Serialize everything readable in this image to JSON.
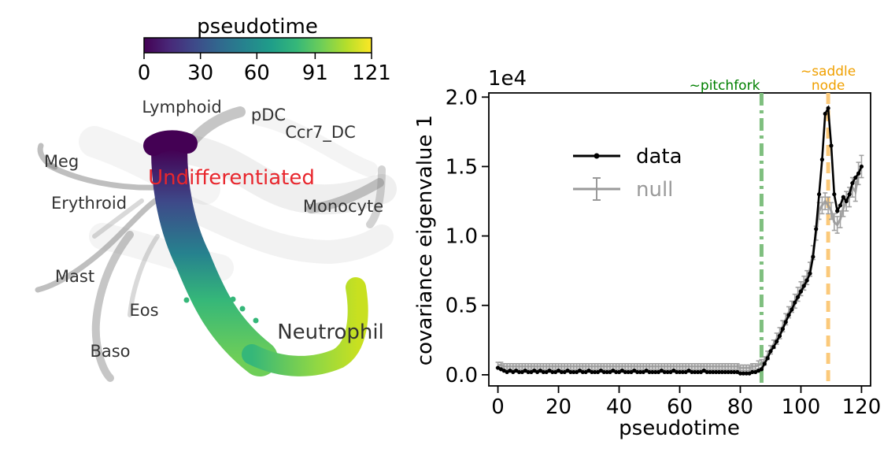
{
  "chart_data": [
    {
      "type": "scatter",
      "colorbar": {
        "label": "pseudotime",
        "ticks": [
          "0",
          "30",
          "60",
          "91",
          "121"
        ],
        "range": [
          0,
          121
        ],
        "colormap": [
          "#440154",
          "#482878",
          "#3e4989",
          "#31688e",
          "#26828e",
          "#1f9e89",
          "#35b779",
          "#6ece58",
          "#b5de2b",
          "#fde725"
        ]
      },
      "background_color": "#808080",
      "highlight_color": "#e8262d",
      "labels": [
        {
          "text": "Lymphoid",
          "emphasis": "normal"
        },
        {
          "text": "pDC",
          "emphasis": "normal"
        },
        {
          "text": "Ccr7_DC",
          "emphasis": "normal"
        },
        {
          "text": "Meg",
          "emphasis": "normal"
        },
        {
          "text": "Undifferentiated",
          "emphasis": "highlight"
        },
        {
          "text": "Erythroid",
          "emphasis": "normal"
        },
        {
          "text": "Monocyte",
          "emphasis": "normal"
        },
        {
          "text": "Mast",
          "emphasis": "normal"
        },
        {
          "text": "Eos",
          "emphasis": "normal"
        },
        {
          "text": "Neutrophil",
          "emphasis": "large"
        },
        {
          "text": "Baso",
          "emphasis": "normal"
        }
      ]
    },
    {
      "type": "line",
      "xlabel": "pseudotime",
      "ylabel": "covariance eigenvalue 1",
      "offset_text": "1e4",
      "xlim": [
        -3,
        123
      ],
      "ylim": [
        -0.08,
        2.03
      ],
      "xticks": [
        0,
        20,
        40,
        60,
        80,
        100,
        120
      ],
      "xtick_labels": [
        "0",
        "20",
        "40",
        "60",
        "80",
        "100",
        "120"
      ],
      "yticks": [
        0.0,
        0.5,
        1.0,
        1.5,
        2.0
      ],
      "ytick_labels": [
        "0.0",
        "0.5",
        "1.0",
        "1.5",
        "2.0"
      ],
      "legend": {
        "position": "upper-left",
        "entries": [
          "data",
          "null"
        ]
      },
      "annotations": [
        {
          "text": "~pitchfork",
          "x": 87,
          "color": "#008000",
          "line_color": "#7fbf7f",
          "style": "dashdot"
        },
        {
          "text": "~saddle",
          "text2": "node",
          "x": 109,
          "color": "#f0a000",
          "line_color": "#fbc97a",
          "style": "dashed"
        }
      ],
      "series": [
        {
          "name": "data",
          "color": "#000000",
          "x": [
            0,
            1,
            2,
            3,
            4,
            5,
            6,
            7,
            8,
            9,
            10,
            11,
            12,
            13,
            14,
            15,
            16,
            17,
            18,
            19,
            20,
            21,
            22,
            23,
            24,
            25,
            26,
            27,
            28,
            29,
            30,
            31,
            32,
            33,
            34,
            35,
            36,
            37,
            38,
            39,
            40,
            41,
            42,
            43,
            44,
            45,
            46,
            47,
            48,
            49,
            50,
            51,
            52,
            53,
            54,
            55,
            56,
            57,
            58,
            59,
            60,
            61,
            62,
            63,
            64,
            65,
            66,
            67,
            68,
            69,
            70,
            71,
            72,
            73,
            74,
            75,
            76,
            77,
            78,
            79,
            80,
            81,
            82,
            83,
            84,
            85,
            86,
            87,
            88,
            89,
            90,
            91,
            92,
            93,
            94,
            95,
            96,
            97,
            98,
            99,
            100,
            101,
            102,
            103,
            104,
            105,
            106,
            107,
            108,
            109,
            110,
            111,
            112,
            113,
            114,
            115,
            116,
            117,
            118,
            119,
            120
          ],
          "y": [
            0.05,
            0.04,
            0.03,
            0.02,
            0.03,
            0.02,
            0.03,
            0.02,
            0.02,
            0.03,
            0.02,
            0.02,
            0.03,
            0.02,
            0.03,
            0.02,
            0.02,
            0.03,
            0.02,
            0.02,
            0.03,
            0.02,
            0.02,
            0.03,
            0.02,
            0.02,
            0.02,
            0.03,
            0.02,
            0.02,
            0.03,
            0.02,
            0.02,
            0.02,
            0.03,
            0.02,
            0.02,
            0.02,
            0.03,
            0.02,
            0.02,
            0.03,
            0.02,
            0.02,
            0.02,
            0.03,
            0.02,
            0.02,
            0.02,
            0.03,
            0.02,
            0.02,
            0.02,
            0.02,
            0.03,
            0.02,
            0.02,
            0.02,
            0.03,
            0.02,
            0.02,
            0.02,
            0.02,
            0.03,
            0.02,
            0.02,
            0.02,
            0.02,
            0.03,
            0.02,
            0.02,
            0.02,
            0.02,
            0.02,
            0.02,
            0.02,
            0.02,
            0.02,
            0.02,
            0.02,
            0.01,
            0.01,
            0.01,
            0.01,
            0.02,
            0.02,
            0.03,
            0.04,
            0.08,
            0.12,
            0.17,
            0.2,
            0.24,
            0.28,
            0.33,
            0.38,
            0.43,
            0.47,
            0.52,
            0.56,
            0.6,
            0.64,
            0.68,
            0.73,
            0.85,
            1.05,
            1.3,
            1.55,
            1.88,
            1.92,
            1.65,
            1.3,
            1.18,
            1.22,
            1.28,
            1.25,
            1.3,
            1.38,
            1.42,
            1.45,
            1.5
          ]
        },
        {
          "name": "null",
          "color": "#9a9a9a",
          "x": [
            0,
            1,
            2,
            3,
            4,
            5,
            6,
            7,
            8,
            9,
            10,
            11,
            12,
            13,
            14,
            15,
            16,
            17,
            18,
            19,
            20,
            21,
            22,
            23,
            24,
            25,
            26,
            27,
            28,
            29,
            30,
            31,
            32,
            33,
            34,
            35,
            36,
            37,
            38,
            39,
            40,
            41,
            42,
            43,
            44,
            45,
            46,
            47,
            48,
            49,
            50,
            51,
            52,
            53,
            54,
            55,
            56,
            57,
            58,
            59,
            60,
            61,
            62,
            63,
            64,
            65,
            66,
            67,
            68,
            69,
            70,
            71,
            72,
            73,
            74,
            75,
            76,
            77,
            78,
            79,
            80,
            81,
            82,
            83,
            84,
            85,
            86,
            87,
            88,
            89,
            90,
            91,
            92,
            93,
            94,
            95,
            96,
            97,
            98,
            99,
            100,
            101,
            102,
            103,
            104,
            105,
            106,
            107,
            108,
            109,
            110,
            111,
            112,
            113,
            114,
            115,
            116,
            117,
            118,
            119,
            120
          ],
          "y": [
            0.07,
            0.07,
            0.06,
            0.06,
            0.06,
            0.06,
            0.06,
            0.06,
            0.06,
            0.06,
            0.06,
            0.06,
            0.06,
            0.06,
            0.06,
            0.06,
            0.06,
            0.06,
            0.06,
            0.06,
            0.06,
            0.06,
            0.06,
            0.06,
            0.06,
            0.06,
            0.06,
            0.06,
            0.06,
            0.06,
            0.06,
            0.06,
            0.06,
            0.06,
            0.06,
            0.06,
            0.06,
            0.06,
            0.06,
            0.06,
            0.06,
            0.06,
            0.06,
            0.06,
            0.06,
            0.06,
            0.06,
            0.06,
            0.06,
            0.06,
            0.06,
            0.06,
            0.06,
            0.06,
            0.06,
            0.06,
            0.06,
            0.06,
            0.06,
            0.06,
            0.06,
            0.06,
            0.06,
            0.06,
            0.06,
            0.06,
            0.06,
            0.06,
            0.06,
            0.06,
            0.06,
            0.06,
            0.06,
            0.06,
            0.06,
            0.06,
            0.06,
            0.06,
            0.06,
            0.06,
            0.05,
            0.05,
            0.05,
            0.05,
            0.06,
            0.06,
            0.07,
            0.08,
            0.1,
            0.14,
            0.18,
            0.22,
            0.26,
            0.3,
            0.35,
            0.4,
            0.45,
            0.49,
            0.53,
            0.58,
            0.62,
            0.66,
            0.7,
            0.76,
            0.88,
            1.02,
            1.18,
            1.22,
            1.25,
            1.22,
            1.18,
            1.1,
            1.08,
            1.12,
            1.2,
            1.25,
            1.28,
            1.35,
            1.32,
            1.45,
            1.5
          ],
          "err": [
            0.02,
            0.02,
            0.02,
            0.02,
            0.02,
            0.02,
            0.02,
            0.02,
            0.02,
            0.02,
            0.02,
            0.02,
            0.02,
            0.02,
            0.02,
            0.02,
            0.02,
            0.02,
            0.02,
            0.02,
            0.02,
            0.02,
            0.02,
            0.02,
            0.02,
            0.02,
            0.02,
            0.02,
            0.02,
            0.02,
            0.02,
            0.02,
            0.02,
            0.02,
            0.02,
            0.02,
            0.02,
            0.02,
            0.02,
            0.02,
            0.02,
            0.02,
            0.02,
            0.02,
            0.02,
            0.02,
            0.02,
            0.02,
            0.02,
            0.02,
            0.02,
            0.02,
            0.02,
            0.02,
            0.02,
            0.02,
            0.02,
            0.02,
            0.02,
            0.02,
            0.02,
            0.02,
            0.02,
            0.02,
            0.02,
            0.02,
            0.02,
            0.02,
            0.02,
            0.02,
            0.02,
            0.02,
            0.02,
            0.02,
            0.02,
            0.02,
            0.02,
            0.02,
            0.02,
            0.02,
            0.02,
            0.02,
            0.02,
            0.02,
            0.02,
            0.02,
            0.03,
            0.03,
            0.03,
            0.03,
            0.03,
            0.03,
            0.04,
            0.04,
            0.04,
            0.04,
            0.04,
            0.04,
            0.05,
            0.05,
            0.05,
            0.05,
            0.05,
            0.05,
            0.05,
            0.05,
            0.06,
            0.06,
            0.06,
            0.06,
            0.06,
            0.06,
            0.06,
            0.06,
            0.06,
            0.07,
            0.07,
            0.07,
            0.07,
            0.08,
            0.08
          ]
        }
      ]
    }
  ]
}
